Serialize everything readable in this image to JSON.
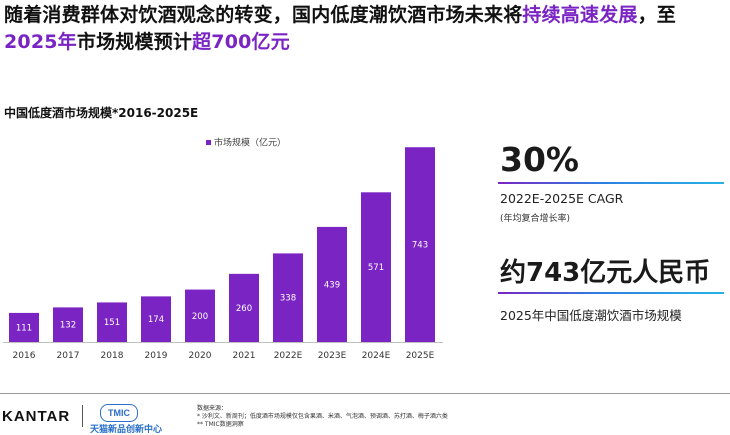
{
  "headline": {
    "line1_plain": "随着消费群体对饮酒观念的转变，国内低度潮饮酒市场未来将",
    "line1_highlight": "持续高速发展",
    "line1_tail": "，至",
    "line2_highlight_year": "2025年",
    "line2_plain": "市场规模预计",
    "line2_highlight_value": "超700亿元"
  },
  "chart_data": {
    "type": "bar",
    "title": "中国低度酒市场规模*2016-2025E",
    "categories": [
      "2016",
      "2017",
      "2018",
      "2019",
      "2020",
      "2021",
      "2022E",
      "2023E",
      "2024E",
      "2025E"
    ],
    "series": [
      {
        "name": "市场规模（亿元）",
        "values": [
          111,
          132,
          151,
          174,
          200,
          260,
          338,
          439,
          571,
          743
        ]
      }
    ],
    "data_labels": [
      "111",
      "132",
      "151",
      "174",
      "200",
      "260",
      "338",
      "439",
      "571",
      "743"
    ],
    "legend_position": "top-left",
    "ylim": [
      0,
      800
    ],
    "bar_color": "#7a24c4",
    "grid": false
  },
  "kpis": [
    {
      "value": "30%",
      "label": "2022E-2025E CAGR",
      "sub": "(年均复合增长率)"
    },
    {
      "value": "约743亿元人民币",
      "label": "2025年中国低度潮饮酒市场规模"
    }
  ],
  "footer": {
    "kantar": "KANTAR",
    "tmic": "TMIC",
    "tmic_sub": "天猫新品创新中心",
    "source_title": "数据来源：",
    "source_line1": "* 沙利文、新周刊；低度酒市场规模仅包含果酒、米酒、气泡酒、预调酒、苏打酒、梅子酒六类",
    "source_line2": "** TMIC数据洞察"
  },
  "colors": {
    "accent": "#7a24c4",
    "divider_start": "#7a24c4",
    "divider_end": "#27b2e6"
  }
}
